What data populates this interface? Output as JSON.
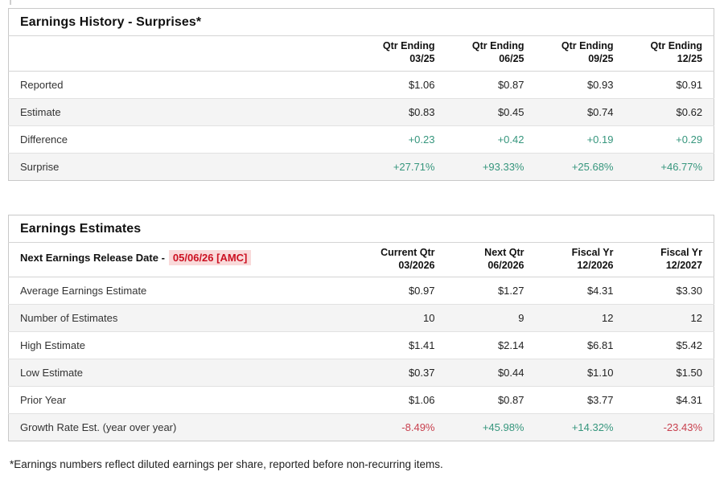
{
  "colors": {
    "positive": "#36967d",
    "negative": "#c8404e",
    "alert_text": "#cc1122",
    "alert_bg": "#f9dada"
  },
  "history": {
    "title": "Earnings History - Surprises*",
    "columns": [
      {
        "line1": "Qtr Ending",
        "line2": "03/25"
      },
      {
        "line1": "Qtr Ending",
        "line2": "06/25"
      },
      {
        "line1": "Qtr Ending",
        "line2": "09/25"
      },
      {
        "line1": "Qtr Ending",
        "line2": "12/25"
      }
    ],
    "rows": [
      {
        "label": "Reported",
        "values": [
          "$1.06",
          "$0.87",
          "$0.93",
          "$0.91"
        ]
      },
      {
        "label": "Estimate",
        "values": [
          "$0.83",
          "$0.45",
          "$0.74",
          "$0.62"
        ]
      },
      {
        "label": "Difference",
        "values": [
          "+0.23",
          "+0.42",
          "+0.19",
          "+0.29"
        ]
      },
      {
        "label": "Surprise",
        "values": [
          "+27.71%",
          "+93.33%",
          "+25.68%",
          "+46.77%"
        ]
      }
    ]
  },
  "estimates": {
    "title": "Earnings Estimates",
    "release_label": "Next Earnings Release Date -",
    "release_date": "05/06/26 [AMC]",
    "columns": [
      {
        "line1": "Current Qtr",
        "line2": "03/2026"
      },
      {
        "line1": "Next Qtr",
        "line2": "06/2026"
      },
      {
        "line1": "Fiscal Yr",
        "line2": "12/2026"
      },
      {
        "line1": "Fiscal Yr",
        "line2": "12/2027"
      }
    ],
    "rows": [
      {
        "label": "Average Earnings Estimate",
        "values": [
          "$0.97",
          "$1.27",
          "$4.31",
          "$3.30"
        ]
      },
      {
        "label": "Number of Estimates",
        "values": [
          "10",
          "9",
          "12",
          "12"
        ]
      },
      {
        "label": "High Estimate",
        "values": [
          "$1.41",
          "$2.14",
          "$6.81",
          "$5.42"
        ]
      },
      {
        "label": "Low Estimate",
        "values": [
          "$0.37",
          "$0.44",
          "$1.10",
          "$1.50"
        ]
      },
      {
        "label": "Prior Year",
        "values": [
          "$1.06",
          "$0.87",
          "$3.77",
          "$4.31"
        ]
      },
      {
        "label": "Growth Rate Est. (year over year)",
        "values": [
          "-8.49%",
          "+45.98%",
          "+14.32%",
          "-23.43%"
        ]
      }
    ]
  },
  "footnote": "*Earnings numbers reflect diluted earnings per share, reported before non-recurring items."
}
